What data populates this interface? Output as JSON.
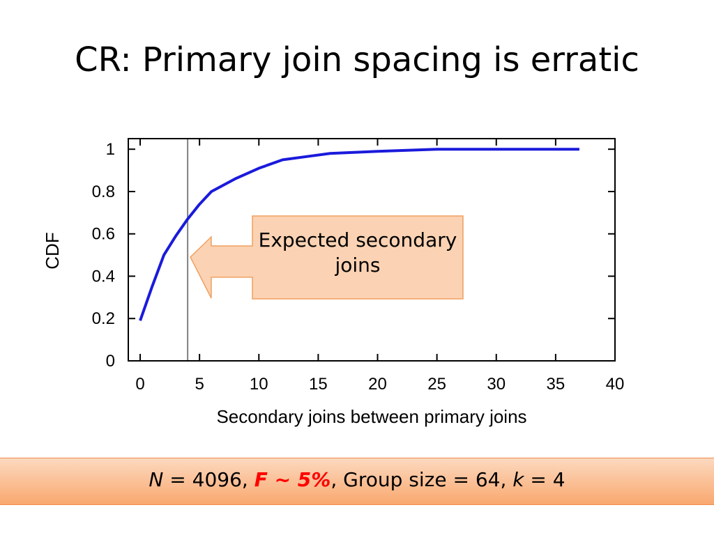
{
  "title": "CR: Primary join spacing is erratic",
  "chart_data": {
    "type": "line",
    "xlabel": "Secondary joins between primary joins",
    "ylabel": "CDF",
    "xlim": [
      -1,
      40
    ],
    "ylim": [
      0,
      1.05
    ],
    "xticks": [
      "0",
      "5",
      "10",
      "15",
      "20",
      "25",
      "30",
      "35",
      "40"
    ],
    "yticks": [
      "0",
      "0.2",
      "0.4",
      "0.6",
      "0.8",
      "1"
    ],
    "series": [
      {
        "color": "#1a1adc",
        "x": [
          0,
          1,
          2,
          3,
          4,
          5,
          6,
          8,
          10,
          12,
          14,
          16,
          18,
          20,
          25,
          30,
          37
        ],
        "y": [
          0.19,
          0.35,
          0.5,
          0.59,
          0.67,
          0.74,
          0.8,
          0.86,
          0.91,
          0.95,
          0.965,
          0.98,
          0.985,
          0.99,
          1.0,
          1.0,
          1.0
        ]
      }
    ],
    "reference_line": {
      "x": 4,
      "color": "#808080"
    },
    "annotation": "Expected secondary joins"
  },
  "params": {
    "n_label": "N",
    "n_text": " = 4096, ",
    "f_label": "F ~ 5%",
    "sep": ", Group size = 64, ",
    "k_label": "k",
    "k_text": " = 4"
  }
}
